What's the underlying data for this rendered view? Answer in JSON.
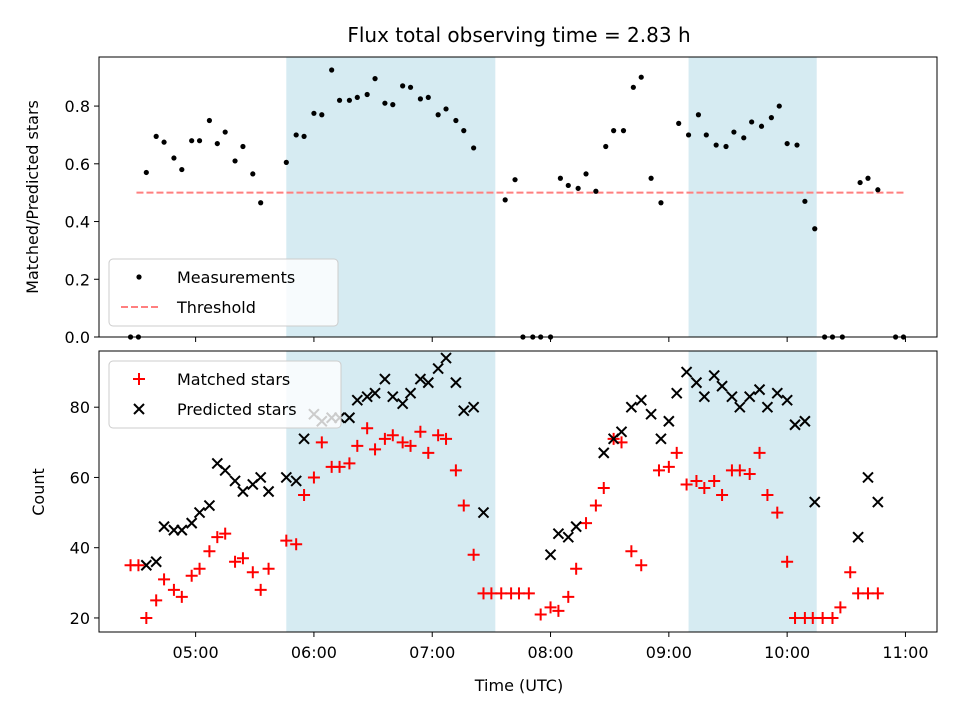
{
  "chart_data": [
    {
      "type": "scatter",
      "title": "Flux total observing time = 2.83 h",
      "xlabel": "",
      "ylabel": "Matched/Predicted stars",
      "ylim": [
        0,
        0.97
      ],
      "yticks": [
        "0.0",
        "0.2",
        "0.4",
        "0.6",
        "0.8"
      ],
      "shaded_intervals": [
        [
          "05:46",
          "07:32"
        ],
        [
          "09:10",
          "10:15"
        ]
      ],
      "shade_color": "#add8e6",
      "legend": {
        "placement": "lower-left",
        "entries": [
          "Measurements",
          "Threshold"
        ]
      },
      "threshold": {
        "name": "Threshold",
        "value": 0.5,
        "x_range": [
          "04:30",
          "11:00"
        ],
        "color": "#ff7f7f"
      },
      "series": [
        {
          "name": "Measurements",
          "color": "#000000",
          "points": [
            [
              "04:27",
              0.0
            ],
            [
              "04:31",
              0.0
            ],
            [
              "04:35",
              0.57
            ],
            [
              "04:40",
              0.695
            ],
            [
              "04:44",
              0.675
            ],
            [
              "04:49",
              0.62
            ],
            [
              "04:53",
              0.58
            ],
            [
              "04:58",
              0.68
            ],
            [
              "05:02",
              0.68
            ],
            [
              "05:07",
              0.75
            ],
            [
              "05:11",
              0.67
            ],
            [
              "05:15",
              0.71
            ],
            [
              "05:20",
              0.61
            ],
            [
              "05:24",
              0.66
            ],
            [
              "05:29",
              0.565
            ],
            [
              "05:33",
              0.465
            ],
            [
              "05:46",
              0.605
            ],
            [
              "05:51",
              0.7
            ],
            [
              "05:55",
              0.695
            ],
            [
              "06:00",
              0.775
            ],
            [
              "06:04",
              0.77
            ],
            [
              "06:09",
              0.925
            ],
            [
              "06:13",
              0.82
            ],
            [
              "06:18",
              0.82
            ],
            [
              "06:22",
              0.83
            ],
            [
              "06:27",
              0.84
            ],
            [
              "06:31",
              0.895
            ],
            [
              "06:36",
              0.81
            ],
            [
              "06:40",
              0.805
            ],
            [
              "06:45",
              0.87
            ],
            [
              "06:49",
              0.865
            ],
            [
              "06:54",
              0.825
            ],
            [
              "06:58",
              0.83
            ],
            [
              "07:03",
              0.77
            ],
            [
              "07:07",
              0.79
            ],
            [
              "07:12",
              0.75
            ],
            [
              "07:16",
              0.715
            ],
            [
              "07:21",
              0.655
            ],
            [
              "07:37",
              0.475
            ],
            [
              "07:42",
              0.545
            ],
            [
              "07:46",
              0.0
            ],
            [
              "07:51",
              0.0
            ],
            [
              "07:55",
              0.0
            ],
            [
              "08:00",
              0.0
            ],
            [
              "08:05",
              0.55
            ],
            [
              "08:09",
              0.525
            ],
            [
              "08:14",
              0.515
            ],
            [
              "08:18",
              0.565
            ],
            [
              "08:23",
              0.505
            ],
            [
              "08:28",
              0.66
            ],
            [
              "08:32",
              0.715
            ],
            [
              "08:37",
              0.715
            ],
            [
              "08:42",
              0.865
            ],
            [
              "08:46",
              0.9
            ],
            [
              "08:51",
              0.55
            ],
            [
              "08:56",
              0.465
            ],
            [
              "09:05",
              0.74
            ],
            [
              "09:10",
              0.7
            ],
            [
              "09:15",
              0.77
            ],
            [
              "09:19",
              0.7
            ],
            [
              "09:24",
              0.665
            ],
            [
              "09:29",
              0.66
            ],
            [
              "09:33",
              0.71
            ],
            [
              "09:38",
              0.69
            ],
            [
              "09:42",
              0.745
            ],
            [
              "09:47",
              0.73
            ],
            [
              "09:52",
              0.76
            ],
            [
              "09:56",
              0.8
            ],
            [
              "10:00",
              0.67
            ],
            [
              "10:05",
              0.665
            ],
            [
              "10:09",
              0.47
            ],
            [
              "10:14",
              0.375
            ],
            [
              "10:19",
              0.0
            ],
            [
              "10:23",
              0.0
            ],
            [
              "10:28",
              0.0
            ],
            [
              "10:37",
              0.535
            ],
            [
              "10:41",
              0.55
            ],
            [
              "10:46",
              0.51
            ],
            [
              "10:55",
              0.0
            ],
            [
              "10:59",
              0.0
            ]
          ]
        }
      ]
    },
    {
      "type": "scatter",
      "title": "",
      "xlabel": "Time (UTC)",
      "ylabel": "Count",
      "xlim": [
        "04:11",
        "11:16"
      ],
      "xticks": [
        "05:00",
        "06:00",
        "07:00",
        "08:00",
        "09:00",
        "10:00",
        "11:00"
      ],
      "ylim": [
        16,
        96
      ],
      "yticks": [
        "20",
        "40",
        "60",
        "80"
      ],
      "shaded_intervals": [
        [
          "05:46",
          "07:32"
        ],
        [
          "09:10",
          "10:15"
        ]
      ],
      "shade_color": "#add8e6",
      "legend": {
        "placement": "upper-left",
        "entries": [
          "Matched stars",
          "Predicted stars"
        ]
      },
      "series": [
        {
          "name": "Matched stars",
          "marker": "plus",
          "color": "#ff0000",
          "points": [
            [
              "04:27",
              35
            ],
            [
              "04:31",
              35
            ],
            [
              "04:35",
              20
            ],
            [
              "04:40",
              25
            ],
            [
              "04:44",
              31
            ],
            [
              "04:49",
              28
            ],
            [
              "04:53",
              26
            ],
            [
              "04:58",
              32
            ],
            [
              "05:02",
              34
            ],
            [
              "05:07",
              39
            ],
            [
              "05:11",
              43
            ],
            [
              "05:15",
              44
            ],
            [
              "05:20",
              36
            ],
            [
              "05:24",
              37
            ],
            [
              "05:29",
              33
            ],
            [
              "05:33",
              28
            ],
            [
              "05:37",
              34
            ],
            [
              "05:46",
              42
            ],
            [
              "05:51",
              41
            ],
            [
              "05:55",
              55
            ],
            [
              "06:00",
              60
            ],
            [
              "06:04",
              70
            ],
            [
              "06:09",
              63
            ],
            [
              "06:13",
              63
            ],
            [
              "06:18",
              64
            ],
            [
              "06:22",
              69
            ],
            [
              "06:27",
              74
            ],
            [
              "06:31",
              68
            ],
            [
              "06:36",
              71
            ],
            [
              "06:40",
              72
            ],
            [
              "06:45",
              70
            ],
            [
              "06:49",
              69
            ],
            [
              "06:54",
              73
            ],
            [
              "06:58",
              67
            ],
            [
              "07:03",
              72
            ],
            [
              "07:07",
              71
            ],
            [
              "07:12",
              62
            ],
            [
              "07:16",
              52
            ],
            [
              "07:21",
              38
            ],
            [
              "07:26",
              27
            ],
            [
              "07:30",
              27
            ],
            [
              "07:35",
              27
            ],
            [
              "07:40",
              27
            ],
            [
              "07:44",
              27
            ],
            [
              "07:49",
              27
            ],
            [
              "07:55",
              21
            ],
            [
              "08:00",
              23
            ],
            [
              "08:04",
              22
            ],
            [
              "08:09",
              26
            ],
            [
              "08:13",
              34
            ],
            [
              "08:18",
              47
            ],
            [
              "08:23",
              52
            ],
            [
              "08:27",
              57
            ],
            [
              "08:32",
              71
            ],
            [
              "08:36",
              70
            ],
            [
              "08:41",
              39
            ],
            [
              "08:46",
              35
            ],
            [
              "08:55",
              62
            ],
            [
              "09:00",
              63
            ],
            [
              "09:04",
              67
            ],
            [
              "09:09",
              58
            ],
            [
              "09:14",
              59
            ],
            [
              "09:18",
              57
            ],
            [
              "09:23",
              59
            ],
            [
              "09:27",
              55
            ],
            [
              "09:32",
              62
            ],
            [
              "09:36",
              62
            ],
            [
              "09:41",
              61
            ],
            [
              "09:46",
              67
            ],
            [
              "09:50",
              55
            ],
            [
              "09:55",
              50
            ],
            [
              "10:00",
              36
            ],
            [
              "10:04",
              20
            ],
            [
              "10:09",
              20
            ],
            [
              "10:13",
              20
            ],
            [
              "10:18",
              20
            ],
            [
              "10:23",
              20
            ],
            [
              "10:27",
              23
            ],
            [
              "10:32",
              33
            ],
            [
              "10:36",
              27
            ],
            [
              "10:41",
              27
            ],
            [
              "10:46",
              27
            ]
          ]
        },
        {
          "name": "Predicted stars",
          "marker": "x",
          "color": "#000000",
          "points": [
            [
              "04:35",
              35
            ],
            [
              "04:40",
              36
            ],
            [
              "04:44",
              46
            ],
            [
              "04:49",
              45
            ],
            [
              "04:53",
              45
            ],
            [
              "04:58",
              47
            ],
            [
              "05:02",
              50
            ],
            [
              "05:07",
              52
            ],
            [
              "05:11",
              64
            ],
            [
              "05:15",
              62
            ],
            [
              "05:20",
              59
            ],
            [
              "05:24",
              56
            ],
            [
              "05:29",
              58
            ],
            [
              "05:33",
              60
            ],
            [
              "05:37",
              56
            ],
            [
              "05:46",
              60
            ],
            [
              "05:51",
              59
            ],
            [
              "05:55",
              71
            ],
            [
              "06:00",
              78
            ],
            [
              "06:04",
              76
            ],
            [
              "06:09",
              77
            ],
            [
              "06:13",
              77
            ],
            [
              "06:18",
              77
            ],
            [
              "06:22",
              82
            ],
            [
              "06:27",
              83
            ],
            [
              "06:31",
              84
            ],
            [
              "06:36",
              88
            ],
            [
              "06:40",
              83
            ],
            [
              "06:45",
              81
            ],
            [
              "06:49",
              84
            ],
            [
              "06:54",
              88
            ],
            [
              "06:58",
              87
            ],
            [
              "07:03",
              91
            ],
            [
              "07:07",
              94
            ],
            [
              "07:12",
              87
            ],
            [
              "07:16",
              79
            ],
            [
              "07:21",
              80
            ],
            [
              "07:26",
              50
            ],
            [
              "08:00",
              38
            ],
            [
              "08:04",
              44
            ],
            [
              "08:09",
              43
            ],
            [
              "08:13",
              46
            ],
            [
              "08:27",
              67
            ],
            [
              "08:32",
              71
            ],
            [
              "08:36",
              73
            ],
            [
              "08:41",
              80
            ],
            [
              "08:46",
              82
            ],
            [
              "08:51",
              78
            ],
            [
              "08:56",
              71
            ],
            [
              "09:00",
              76
            ],
            [
              "09:04",
              84
            ],
            [
              "09:09",
              90
            ],
            [
              "09:14",
              87
            ],
            [
              "09:18",
              83
            ],
            [
              "09:23",
              89
            ],
            [
              "09:27",
              86
            ],
            [
              "09:32",
              83
            ],
            [
              "09:36",
              80
            ],
            [
              "09:41",
              83
            ],
            [
              "09:46",
              85
            ],
            [
              "09:50",
              80
            ],
            [
              "09:55",
              84
            ],
            [
              "10:00",
              82
            ],
            [
              "10:04",
              75
            ],
            [
              "10:09",
              76
            ],
            [
              "10:14",
              53
            ],
            [
              "10:36",
              43
            ],
            [
              "10:41",
              60
            ],
            [
              "10:46",
              53
            ]
          ]
        }
      ]
    }
  ]
}
